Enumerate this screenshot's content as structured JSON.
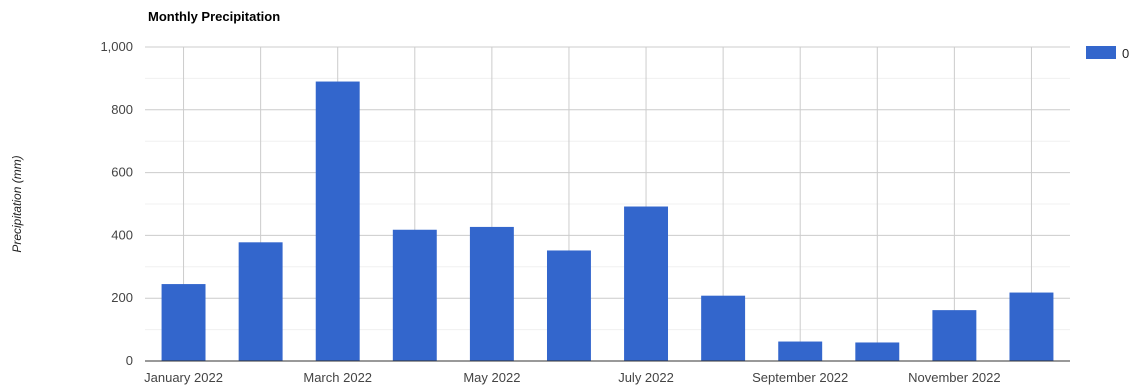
{
  "chart_data": {
    "type": "bar",
    "title": "Monthly Precipitation",
    "xlabel": "",
    "ylabel": "Precipitation (mm)",
    "ylim": [
      0,
      1000
    ],
    "yticks": [
      "0",
      "200",
      "400",
      "600",
      "800",
      "1,000"
    ],
    "ytick_values": [
      0,
      200,
      400,
      600,
      800,
      1000
    ],
    "categories": [
      "January 2022",
      "February 2022",
      "March 2022",
      "April 2022",
      "May 2022",
      "June 2022",
      "July 2022",
      "August 2022",
      "September 2022",
      "October 2022",
      "November 2022",
      "December 2022"
    ],
    "x_tick_labels": [
      "January 2022",
      "",
      "March 2022",
      "",
      "May 2022",
      "",
      "July 2022",
      "",
      "September 2022",
      "",
      "November 2022",
      ""
    ],
    "series": [
      {
        "name": "0",
        "color": "#3366cc",
        "values": [
          245,
          378,
          890,
          418,
          427,
          352,
          492,
          208,
          62,
          59,
          162,
          218
        ]
      }
    ],
    "grid": true,
    "legend_position": "top-right"
  }
}
